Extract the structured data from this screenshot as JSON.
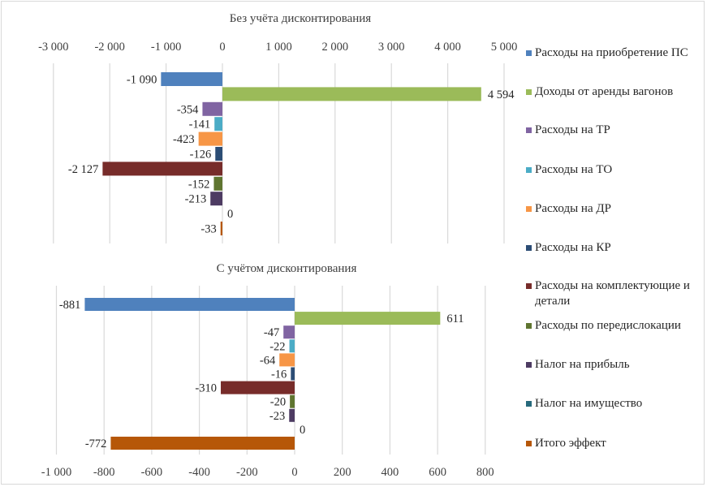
{
  "chart_data": [
    {
      "type": "bar",
      "orientation": "horizontal",
      "title": "Без учёта дисконтирования",
      "xlabel": "",
      "ylabel": "",
      "xlim": [
        -3000,
        5000
      ],
      "x_ticks": [
        -3000,
        -2000,
        -1000,
        0,
        1000,
        2000,
        3000,
        4000,
        5000
      ],
      "x_tick_labels": [
        "-3 000",
        "-2 000",
        "-1 000",
        "0",
        "1 000",
        "2 000",
        "3 000",
        "4 000",
        "5 000"
      ],
      "axis_position": "top",
      "grid": true,
      "categories": [
        "Расходы на приобретение ПС",
        "Доходы от аренды вагонов",
        "Расходы на ТР",
        "Расходы на ТО",
        "Расходы на ДР",
        "Расходы на КР",
        "Расходы на комплектующие и детали",
        "Расходы по передислокации",
        "Налог на прибыль",
        "Налог на имущество",
        "Итого эффект"
      ],
      "values": [
        -1090,
        4594,
        -354,
        -141,
        -423,
        -126,
        -2127,
        -152,
        -213,
        0,
        -33
      ],
      "data_labels": [
        "-1 090",
        "4 594",
        "-354",
        "-141",
        "-423",
        "-126",
        "-2 127",
        "-152",
        "-213",
        "0",
        "-33"
      ]
    },
    {
      "type": "bar",
      "orientation": "horizontal",
      "title": "С учётом дисконтирования",
      "xlabel": "",
      "ylabel": "",
      "xlim": [
        -1000,
        1000
      ],
      "x_ticks": [
        -1000,
        -800,
        -600,
        -400,
        -200,
        0,
        200,
        400,
        600,
        800
      ],
      "x_tick_labels": [
        "-1 000",
        "-800",
        "-600",
        "-400",
        "-200",
        "0",
        "200",
        "400",
        "600",
        "800"
      ],
      "axis_position": "bottom",
      "grid": true,
      "categories": [
        "Расходы на приобретение ПС",
        "Доходы от аренды вагонов",
        "Расходы на ТР",
        "Расходы на ТО",
        "Расходы на ДР",
        "Расходы на КР",
        "Расходы на комплектующие и детали",
        "Расходы по передислокации",
        "Налог на прибыль",
        "Налог на имущество",
        "Итого эффект"
      ],
      "values": [
        -881,
        611,
        -47,
        -22,
        -64,
        -16,
        -310,
        -20,
        -23,
        0,
        -772
      ],
      "data_labels": [
        "-881",
        "611",
        "-47",
        "-22",
        "-64",
        "-16",
        "-310",
        "-20",
        "-23",
        "0",
        "-772"
      ]
    }
  ],
  "legend": {
    "placement": "right",
    "items": [
      {
        "label": "Расходы на приобретение ПС",
        "color": "#4f81bd"
      },
      {
        "label": "Доходы от аренды вагонов",
        "color": "#9bbb59"
      },
      {
        "label": "Расходы на ТР",
        "color": "#8064a2"
      },
      {
        "label": "Расходы на ТО",
        "color": "#4bacc6"
      },
      {
        "label": "Расходы на ДР",
        "color": "#f79646"
      },
      {
        "label": "Расходы на КР",
        "color": "#2c4d75"
      },
      {
        "label": "Расходы на комплектующие и детали",
        "color": "#772c2a"
      },
      {
        "label": "Расходы по передислокации",
        "color": "#5f7530"
      },
      {
        "label": "Налог на прибыль",
        "color": "#4d3b62"
      },
      {
        "label": "Налог на имущество",
        "color": "#276a7c"
      },
      {
        "label": "Итого эффект",
        "color": "#b65708"
      }
    ]
  }
}
